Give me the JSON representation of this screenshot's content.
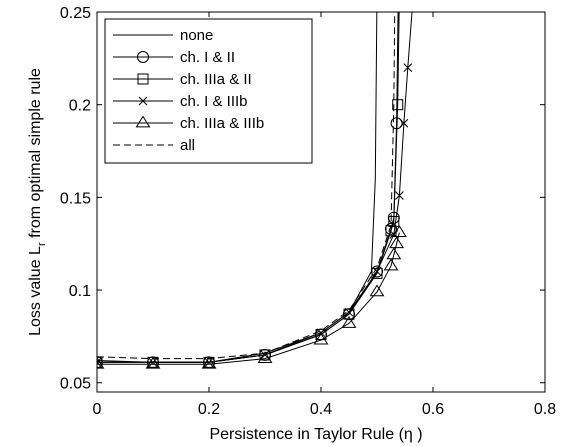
{
  "chart_data": {
    "type": "line",
    "xlabel": "Persistence in Taylor Rule (η )",
    "ylabel_main": "Loss value L",
    "ylabel_sub": "r",
    "ylabel_rest": " from optimal simple rule",
    "xlim": [
      0,
      0.8
    ],
    "ylim": [
      0.045,
      0.25
    ],
    "xticks": [
      0,
      0.2,
      0.4,
      0.6,
      0.8
    ],
    "xtick_labels": [
      "0",
      "0.2",
      "0.4",
      "0.6",
      "0.8"
    ],
    "yticks": [
      0.05,
      0.1,
      0.15,
      0.2,
      0.25
    ],
    "ytick_labels": [
      "0.05",
      "0.1",
      "0.15",
      "0.2",
      "0.25"
    ],
    "grid": false,
    "legend_position": "top-left",
    "series": [
      {
        "name": "none",
        "marker": "none",
        "dash": "solid",
        "points": [
          [
            0,
            0.062
          ],
          [
            0.1,
            0.061
          ],
          [
            0.2,
            0.061
          ],
          [
            0.3,
            0.066
          ],
          [
            0.4,
            0.077
          ],
          [
            0.45,
            0.088
          ],
          [
            0.49,
            0.11
          ],
          [
            0.497,
            0.16
          ],
          [
            0.5,
            0.26
          ]
        ]
      },
      {
        "name": "ch. I & II",
        "marker": "circle",
        "dash": "solid",
        "points": [
          [
            0,
            0.061
          ],
          [
            0.1,
            0.061
          ],
          [
            0.2,
            0.061
          ],
          [
            0.3,
            0.065
          ],
          [
            0.4,
            0.076
          ],
          [
            0.45,
            0.087
          ],
          [
            0.5,
            0.11
          ],
          [
            0.525,
            0.133
          ],
          [
            0.53,
            0.139
          ],
          [
            0.535,
            0.19
          ],
          [
            0.538,
            0.26
          ]
        ]
      },
      {
        "name": "ch. IIIa & II",
        "marker": "square",
        "dash": "solid",
        "points": [
          [
            0,
            0.061
          ],
          [
            0.1,
            0.061
          ],
          [
            0.2,
            0.061
          ],
          [
            0.3,
            0.065
          ],
          [
            0.4,
            0.076
          ],
          [
            0.45,
            0.087
          ],
          [
            0.5,
            0.109
          ],
          [
            0.525,
            0.132
          ],
          [
            0.53,
            0.137
          ],
          [
            0.537,
            0.2
          ],
          [
            0.54,
            0.26
          ]
        ]
      },
      {
        "name": "ch. I & IIIb",
        "marker": "x",
        "dash": "solid",
        "points": [
          [
            0,
            0.061
          ],
          [
            0.1,
            0.061
          ],
          [
            0.2,
            0.061
          ],
          [
            0.3,
            0.065
          ],
          [
            0.4,
            0.077
          ],
          [
            0.45,
            0.088
          ],
          [
            0.5,
            0.11
          ],
          [
            0.53,
            0.13
          ],
          [
            0.54,
            0.151
          ],
          [
            0.548,
            0.19
          ],
          [
            0.555,
            0.22
          ],
          [
            0.565,
            0.26
          ]
        ]
      },
      {
        "name": "ch. IIIa & IIIb",
        "marker": "triangle",
        "dash": "solid",
        "points": [
          [
            0,
            0.06
          ],
          [
            0.1,
            0.06
          ],
          [
            0.2,
            0.06
          ],
          [
            0.3,
            0.063
          ],
          [
            0.4,
            0.073
          ],
          [
            0.45,
            0.082
          ],
          [
            0.5,
            0.099
          ],
          [
            0.525,
            0.113
          ],
          [
            0.53,
            0.119
          ],
          [
            0.535,
            0.125
          ],
          [
            0.54,
            0.131
          ]
        ]
      },
      {
        "name": "all",
        "marker": "none",
        "dash": "dashed",
        "points": [
          [
            0,
            0.064
          ],
          [
            0.1,
            0.063
          ],
          [
            0.2,
            0.063
          ],
          [
            0.3,
            0.066
          ],
          [
            0.4,
            0.078
          ],
          [
            0.45,
            0.089
          ],
          [
            0.5,
            0.112
          ],
          [
            0.525,
            0.135
          ],
          [
            0.53,
            0.2
          ],
          [
            0.532,
            0.26
          ]
        ]
      }
    ]
  }
}
